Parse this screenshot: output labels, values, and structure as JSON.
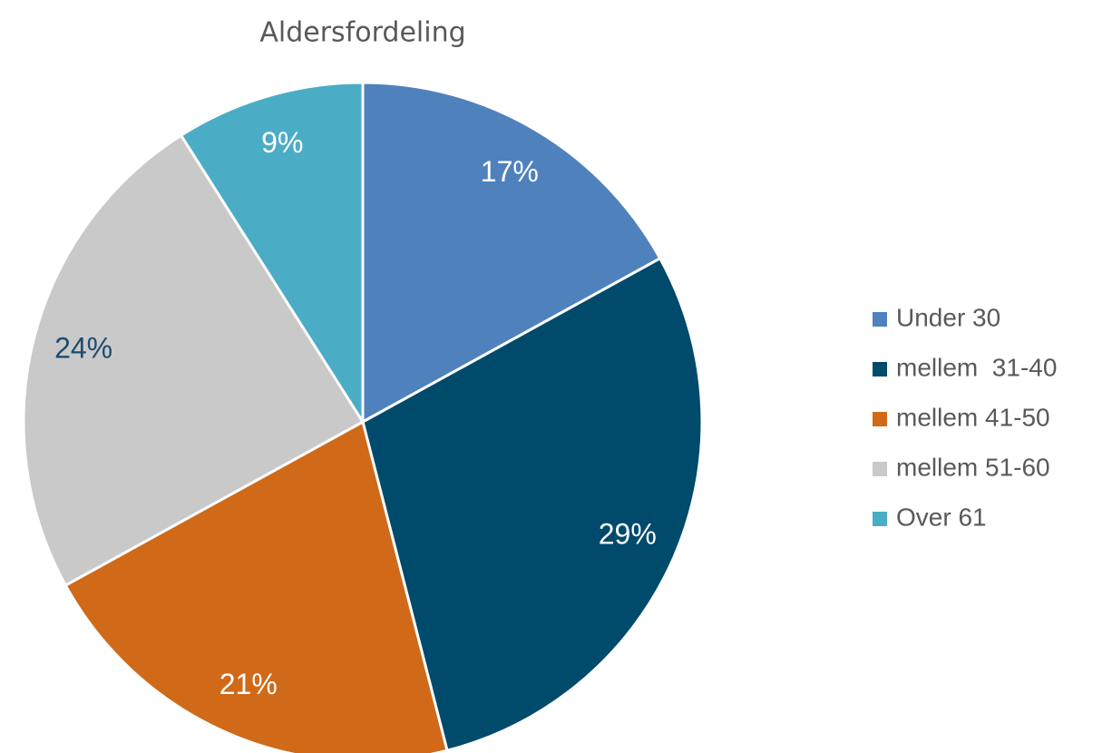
{
  "chart_data": {
    "type": "pie",
    "title": "Aldersfordeling",
    "categories": [
      "Under 30",
      "mellem  31-40",
      "mellem 41-50",
      "mellem 51-60",
      "Over 61"
    ],
    "values": [
      17,
      29,
      21,
      24,
      9
    ],
    "value_labels": [
      "17%",
      "29%",
      "21%",
      "24%",
      "9%"
    ],
    "colors": [
      "#4f81bd",
      "#004a6c",
      "#d06918",
      "#c9c9c9",
      "#4bacc6"
    ],
    "value_label_colors": [
      "#ffffff",
      "#ffffff",
      "#ffffff",
      "#1c4c6e",
      "#ffffff"
    ],
    "legend": "right"
  }
}
